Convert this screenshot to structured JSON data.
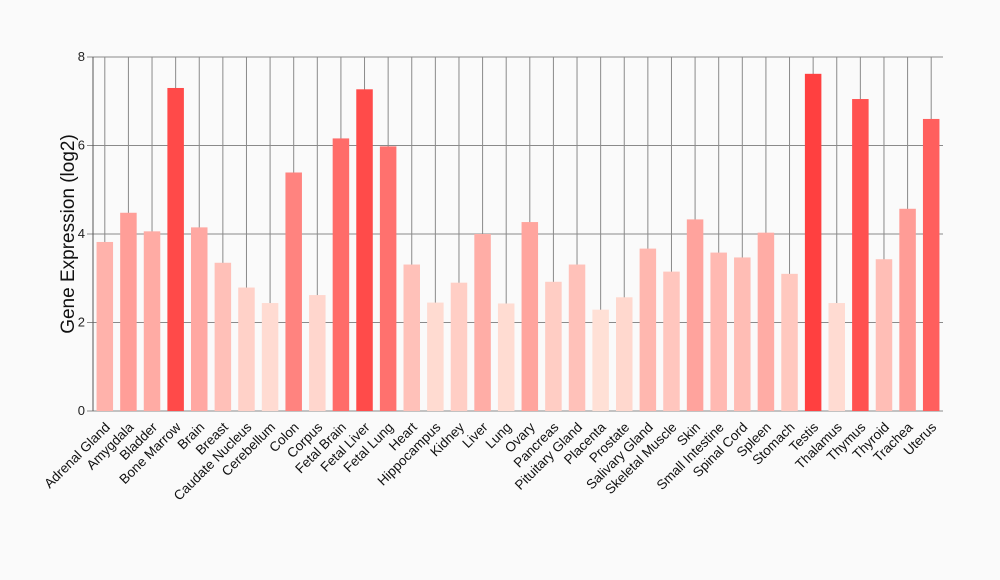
{
  "chart_data": {
    "type": "bar",
    "ylabel": "Gene Expression (log2)",
    "xlabel": "",
    "ylim": [
      0,
      8
    ],
    "yticks": [
      0,
      2,
      4,
      6,
      8
    ],
    "grid": true,
    "color_low": "#ffe0d6",
    "color_high": "#ff4040",
    "categories": [
      "Adrenal Gland",
      "Amygdala",
      "Bladder",
      "Bone Marrow",
      "Brain",
      "Breast",
      "Caudate Nucleus",
      "Cerebellum",
      "Colon",
      "Corpus",
      "Fetal Brain",
      "Fetal Liver",
      "Fetal Lung",
      "Heart",
      "Hippocampus",
      "Kidney",
      "Liver",
      "Lung",
      "Ovary",
      "Pancreas",
      "Pituitary Gland",
      "Placenta",
      "Prostate",
      "Salivary Gland",
      "Skeletal Muscle",
      "Skin",
      "Small Intestine",
      "Spinal Cord",
      "Spleen",
      "Stomach",
      "Testis",
      "Thalamus",
      "Thymus",
      "Thyroid",
      "Trachea",
      "Uterus"
    ],
    "values": [
      3.82,
      4.48,
      4.06,
      7.3,
      4.15,
      3.35,
      2.79,
      2.44,
      5.39,
      2.62,
      6.16,
      7.27,
      5.98,
      3.31,
      2.45,
      2.9,
      4.0,
      2.43,
      4.27,
      2.92,
      3.31,
      2.29,
      2.57,
      3.67,
      3.15,
      4.33,
      3.58,
      3.47,
      4.03,
      3.1,
      7.62,
      2.44,
      7.05,
      3.43,
      4.57,
      6.6
    ]
  }
}
